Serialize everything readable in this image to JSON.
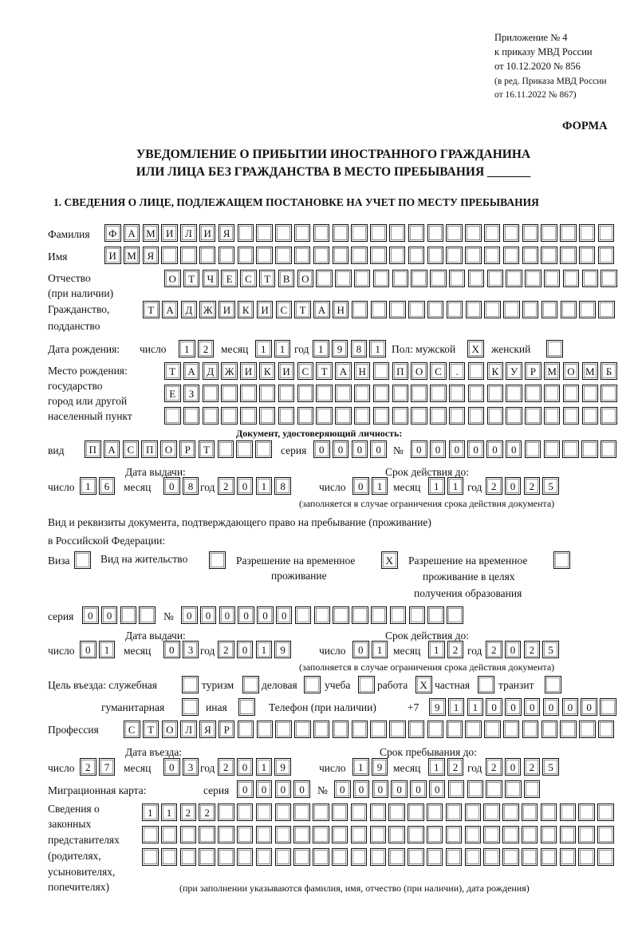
{
  "header": {
    "appendix": "Приложение № 4",
    "order": "к приказу МВД России",
    "order_date": "от 10.12.2020 № 856",
    "revision_1": "(в ред. Приказа МВД России",
    "revision_2": "от 16.11.2022 № 867)",
    "form_label": "ФОРМА",
    "title_1": "УВЕДОМЛЕНИЕ О ПРИБЫТИИ ИНОСТРАННОГО ГРАЖДАНИНА",
    "title_2": "ИЛИ ЛИЦА БЕЗ ГРАЖДАНСТВА В МЕСТО ПРЕБЫВАНИЯ _______"
  },
  "section1": {
    "heading": "1. СВЕДЕНИЯ О ЛИЦЕ, ПОДЛЕЖАЩЕМ ПОСТАНОВКЕ НА УЧЕТ ПО МЕСТУ ПРЕБЫВАНИЯ",
    "surname_label": "Фамилия",
    "surname": "ФАМИЛИЯ",
    "name_label": "Имя",
    "name": "ИМЯ",
    "patronymic_label_1": "Отчество",
    "patronymic_label_2": "(при наличии)",
    "patronymic": "ОТЧЕСТВО",
    "citizenship_label_1": "Гражданство,",
    "citizenship_label_2": "подданство",
    "citizenship": "ТАДЖИКИСТАН",
    "birth": {
      "label": "Дата рождения:",
      "day_label": "число",
      "day": "12",
      "month_label": "месяц",
      "month": "11",
      "year_label": "год",
      "year": "1981",
      "sex_label": "Пол: мужской",
      "male": "X",
      "female_label": "женский",
      "female": ""
    },
    "birthplace": {
      "label_1": "Место рождения:",
      "label_2": "государство",
      "label_3": "город или другой",
      "label_4": "населенный пункт",
      "row_1": "ТАДЖИКИСТАН ПОС. КУРМОМБ",
      "row_2": "ЕЗ",
      "row_3": ""
    },
    "id_doc": {
      "heading": "Документ, удостоверяющий личность:",
      "type_label": "вид",
      "type": "ПАСПОРТ",
      "series_label": "серия",
      "series": "0000",
      "number_label": "№",
      "number": "000000",
      "issue_label": "Дата выдачи:",
      "valid_label": "Срок действия до:",
      "issue": {
        "day": "16",
        "month": "08",
        "year": "2018"
      },
      "valid": {
        "day": "01",
        "month": "11",
        "year": "2025"
      },
      "note": "(заполняется в случае ограничения срока действия документа)"
    },
    "stay_doc": {
      "text_1": "Вид и реквизиты документа, подтверждающего право на пребывание (проживание)",
      "text_2": "в Российской Федерации:",
      "visa_label": "Виза",
      "visa": "",
      "residence_label": "Вид на жительство",
      "residence": "",
      "temp_label_1": "Разрешение на временное",
      "temp_label_2": "проживание",
      "temp": "X",
      "edu_label_1": "Разрешение на временное",
      "edu_label_2": "проживание в целях",
      "edu_label_3": "получения образования",
      "edu": "",
      "series_label": "серия",
      "series": "00",
      "number_label": "№",
      "number": "000000",
      "issue_label": "Дата выдачи:",
      "valid_label": "Срок действия до:",
      "issue": {
        "day": "01",
        "month": "03",
        "year": "2019"
      },
      "valid": {
        "day": "01",
        "month": "12",
        "year": "2025"
      },
      "note": "(заполняется в случае ограничения срока действия документа)"
    },
    "purpose": {
      "label": "Цель въезда: служебная",
      "official": "",
      "tourism_label": "туризм",
      "tourism": "",
      "business_label": "деловая",
      "business": "",
      "study_label": "учеба",
      "study": "",
      "work_label": "работа",
      "work": "X",
      "private_label": "частная",
      "private": "",
      "transit_label": "транзит",
      "transit": "",
      "humanitarian_label": "гуманитарная",
      "humanitarian": "",
      "other_label": "иная",
      "other": ""
    },
    "phone_label": "Телефон (при наличии)",
    "phone_prefix": "+7",
    "phone": "911000000",
    "profession_label": "Профессия",
    "profession": "СТОЛЯР",
    "entry": {
      "label": "Дата въезда:",
      "day": "27",
      "month": "03",
      "year": "2019",
      "stay_label": "Срок пребывания до:",
      "stay_day": "19",
      "stay_month": "12",
      "stay_year": "2025"
    },
    "date_labels": {
      "day": "число",
      "month": "месяц",
      "year": "год"
    },
    "migration_card": {
      "label": "Миграционная карта:",
      "series_label": "серия",
      "series": "0000",
      "number_label": "№",
      "number": "000000"
    },
    "representatives": {
      "label_1": "Сведения о",
      "label_2": "законных",
      "label_3": "представителях",
      "label_4": "(родителях,",
      "label_5": "усыновителях,",
      "label_6": "попечителях)",
      "row_1": "1122",
      "row_2": "",
      "row_3": "",
      "note": "(при заполнении указываются фамилия, имя, отчество (при наличии), дата рождения)"
    }
  }
}
